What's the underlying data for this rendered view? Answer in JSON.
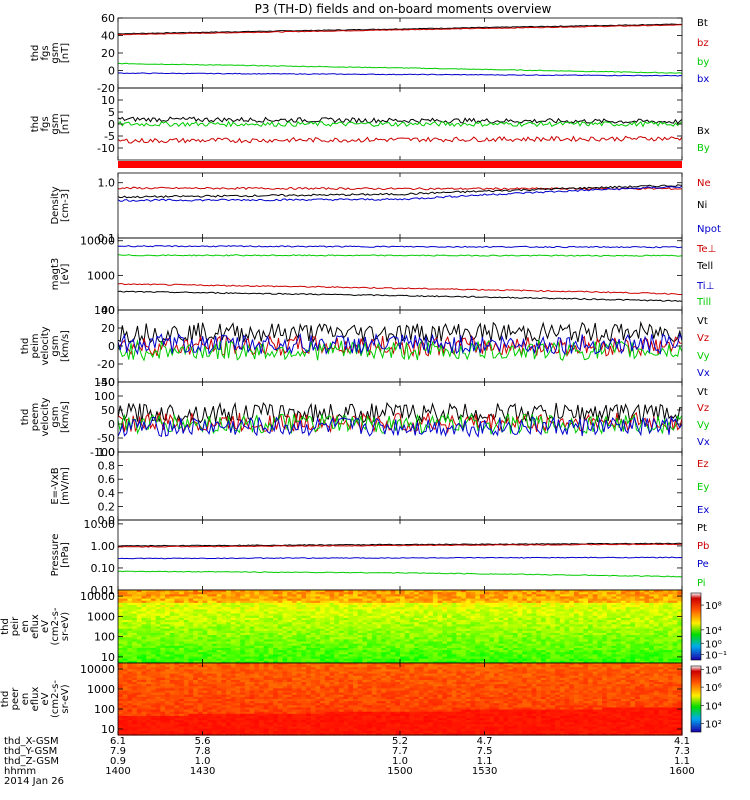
{
  "title": "P3 (TH-D) fields and on-board moments overview",
  "chart_data": [
    {
      "id": "fgs_gsm",
      "type": "line",
      "ylabel": [
        "thd",
        "fgs",
        "gsm",
        "[nT]"
      ],
      "ylim": [
        -20,
        60
      ],
      "yticks": [
        "60",
        "40",
        "20",
        "0",
        "-20"
      ],
      "ytick_values": [
        60,
        40,
        20,
        0,
        -20
      ],
      "scale": "linear",
      "series": [
        {
          "name": "Bt",
          "color": "#000000",
          "x": [
            1400,
            1600
          ],
          "y": [
            42,
            53
          ]
        },
        {
          "name": "bz",
          "color": "#cc0000",
          "x": [
            1400,
            1600
          ],
          "y": [
            41,
            52
          ]
        },
        {
          "name": "by",
          "color": "#00cc00",
          "x": [
            1400,
            1500,
            1600
          ],
          "y": [
            8,
            3,
            -3
          ]
        },
        {
          "name": "bx",
          "color": "#0000cc",
          "x": [
            1400,
            1600
          ],
          "y": [
            -3,
            -6
          ]
        }
      ]
    },
    {
      "id": "fgs_dsl",
      "type": "line",
      "ylabel": [
        "thd",
        "fgs",
        "gsm",
        "[nT]"
      ],
      "ylim": [
        -15,
        15
      ],
      "yticks": [
        "10",
        "5",
        "0",
        "-5",
        "-10"
      ],
      "ytick_values": [
        10,
        5,
        0,
        -5,
        -10
      ],
      "scale": "linear",
      "series": [
        {
          "name": "Bx",
          "color": "#000000",
          "x": [
            1400,
            1600
          ],
          "y": [
            2,
            1
          ]
        },
        {
          "name": "By",
          "color": "#00cc00",
          "x": [
            1400,
            1600
          ],
          "y": [
            0,
            0
          ]
        },
        {
          "name": "Bz",
          "color": "#cc0000",
          "x": [
            1400,
            1600
          ],
          "y": [
            -7,
            -6
          ]
        }
      ]
    },
    {
      "id": "density",
      "type": "line",
      "ylabel": [
        "Density",
        "[cm-3]"
      ],
      "ylim": [
        0.1,
        1.5
      ],
      "yticks": [
        "1.0",
        "0.1"
      ],
      "ytick_values": [
        1.0,
        0.1
      ],
      "scale": "log",
      "series": [
        {
          "name": "Ne",
          "color": "#cc0000",
          "x": [
            1400,
            1500,
            1600
          ],
          "y": [
            0.8,
            0.78,
            0.78
          ]
        },
        {
          "name": "Ni",
          "color": "#000000",
          "x": [
            1400,
            1500,
            1600
          ],
          "y": [
            0.55,
            0.62,
            0.9
          ]
        },
        {
          "name": "Npot",
          "color": "#0000cc",
          "x": [
            1400,
            1500,
            1600
          ],
          "y": [
            0.48,
            0.5,
            0.85
          ]
        }
      ]
    },
    {
      "id": "temperature",
      "type": "line",
      "ylabel": [
        "magt3",
        "[eV]"
      ],
      "ylim": [
        100,
        12000
      ],
      "yticks": [
        "10000",
        "1000",
        "100"
      ],
      "ytick_values": [
        10000,
        1000,
        100
      ],
      "scale": "log",
      "series": [
        {
          "name": "Te⊥",
          "color": "#cc0000",
          "x": [
            1400,
            1600
          ],
          "y": [
            560,
            290
          ]
        },
        {
          "name": "Tell",
          "color": "#000000",
          "x": [
            1400,
            1600
          ],
          "y": [
            340,
            180
          ]
        },
        {
          "name": "Ti⊥",
          "color": "#0000cc",
          "x": [
            1400,
            1600
          ],
          "y": [
            7000,
            6500
          ]
        },
        {
          "name": "Till",
          "color": "#00cc00",
          "x": [
            1400,
            1600
          ],
          "y": [
            3800,
            3700
          ]
        }
      ]
    },
    {
      "id": "peim_velocity",
      "type": "line",
      "ylabel": [
        "thd",
        "peim",
        "velocity",
        "gsm",
        "[km/s]"
      ],
      "ylim": [
        -40,
        40
      ],
      "yticks": [
        "40",
        "20",
        "0",
        "-20",
        "-40"
      ],
      "ytick_values": [
        40,
        20,
        0,
        -20,
        -40
      ],
      "scale": "linear",
      "series": [
        {
          "name": "Vt",
          "color": "#000000",
          "x": [
            1400,
            1600
          ],
          "y": [
            15,
            15
          ]
        },
        {
          "name": "Vz",
          "color": "#cc0000",
          "x": [
            1400,
            1600
          ],
          "y": [
            0,
            0
          ]
        },
        {
          "name": "Vy",
          "color": "#00cc00",
          "x": [
            1400,
            1600
          ],
          "y": [
            -5,
            -5
          ]
        },
        {
          "name": "Vx",
          "color": "#0000cc",
          "x": [
            1400,
            1600
          ],
          "y": [
            2,
            2
          ]
        }
      ]
    },
    {
      "id": "peem_velocity",
      "type": "line",
      "ylabel": [
        "thd",
        "peem",
        "velocity",
        "gsm",
        "[km/s]"
      ],
      "ylim": [
        -100,
        150
      ],
      "yticks": [
        "150",
        "100",
        "50",
        "0",
        "-50",
        "-100"
      ],
      "ytick_values": [
        150,
        100,
        50,
        0,
        -50,
        -100
      ],
      "scale": "linear",
      "series": [
        {
          "name": "Vt",
          "color": "#000000",
          "x": [
            1400,
            1600
          ],
          "y": [
            40,
            40
          ]
        },
        {
          "name": "Vz",
          "color": "#cc0000",
          "x": [
            1400,
            1600
          ],
          "y": [
            5,
            5
          ]
        },
        {
          "name": "Vy",
          "color": "#00cc00",
          "x": [
            1400,
            1600
          ],
          "y": [
            0,
            0
          ]
        },
        {
          "name": "Vx",
          "color": "#0000cc",
          "x": [
            1400,
            1600
          ],
          "y": [
            -10,
            -10
          ]
        }
      ]
    },
    {
      "id": "efield",
      "type": "line",
      "ylabel": [
        "E=-VxB",
        "[mV/m]"
      ],
      "ylim": [
        0,
        1
      ],
      "yticks": [
        "1.0",
        "0.8",
        "0.6",
        "0.4",
        "0.2",
        "0.0"
      ],
      "ytick_values": [
        1.0,
        0.8,
        0.6,
        0.4,
        0.2,
        0.0
      ],
      "scale": "linear",
      "series": [
        {
          "name": "Ez",
          "color": "#cc0000",
          "x": [],
          "y": []
        },
        {
          "name": "Ey",
          "color": "#00cc00",
          "x": [],
          "y": []
        },
        {
          "name": "Ex",
          "color": "#0000cc",
          "x": [],
          "y": []
        }
      ]
    },
    {
      "id": "pressure",
      "type": "line",
      "ylabel": [
        "Pressure",
        "[nPa]"
      ],
      "ylim": [
        0.01,
        15
      ],
      "yticks": [
        "10.00",
        "1.00",
        "0.10",
        "0.01"
      ],
      "ytick_values": [
        10,
        1,
        0.1,
        0.01
      ],
      "scale": "log",
      "series": [
        {
          "name": "Pt",
          "color": "#000000",
          "x": [
            1400,
            1600
          ],
          "y": [
            1.0,
            1.3
          ]
        },
        {
          "name": "Pb",
          "color": "#cc0000",
          "x": [
            1400,
            1600
          ],
          "y": [
            0.9,
            1.2
          ]
        },
        {
          "name": "Pe",
          "color": "#0000cc",
          "x": [
            1400,
            1600
          ],
          "y": [
            0.27,
            0.3
          ]
        },
        {
          "name": "Pi",
          "color": "#00cc00",
          "x": [
            1400,
            1500,
            1600
          ],
          "y": [
            0.07,
            0.06,
            0.04
          ]
        }
      ]
    },
    {
      "id": "peir_spectrogram",
      "type": "heatmap",
      "ylabel": [
        "thd",
        "peir",
        "en",
        "eflux",
        "eV",
        "(cm2-s-",
        "sr-eV)"
      ],
      "ylim": [
        5,
        20000
      ],
      "yticks": [
        "10000",
        "1000",
        "100",
        "10"
      ],
      "ytick_values": [
        10000,
        1000,
        100,
        10
      ],
      "scale": "log",
      "colorbar_ticks": [
        "10⁸",
        "10⁴",
        "10⁰",
        "10⁻¹"
      ],
      "colorbar_tick_fraction": [
        0.18,
        0.55,
        0.75,
        0.92
      ]
    },
    {
      "id": "peer_spectrogram",
      "type": "heatmap",
      "ylabel": [
        "thd",
        "peer",
        "en",
        "eflux",
        "eV",
        "(cm2-s-",
        "sr-eV)"
      ],
      "ylim": [
        5,
        20000
      ],
      "yticks": [
        "10000",
        "1000",
        "100",
        "10"
      ],
      "ytick_values": [
        10000,
        1000,
        100,
        10
      ],
      "scale": "log",
      "colorbar_ticks": [
        "10⁸",
        "10⁶",
        "10⁴",
        "10²"
      ],
      "colorbar_tick_fraction": [
        0.05,
        0.32,
        0.6,
        0.87
      ]
    }
  ],
  "x_axis": {
    "ticks_hhmm": [
      "1400",
      "1430",
      "1500",
      "1530",
      "1600"
    ],
    "tick_values": [
      1400,
      1430,
      1500,
      1530,
      1600
    ],
    "rows": [
      {
        "label": "thd_X-GSM",
        "values": [
          "6.1",
          "5.6",
          "5.2",
          "4.7",
          "4.1"
        ]
      },
      {
        "label": "thd_Y-GSM",
        "values": [
          "7.9",
          "7.8",
          "7.7",
          "7.5",
          "7.3"
        ]
      },
      {
        "label": "thd_Z-GSM",
        "values": [
          "0.9",
          "1.0",
          "1.0",
          "1.1",
          "1.1"
        ]
      }
    ],
    "time_label": "hhmm",
    "date": "2014 Jan 26"
  }
}
